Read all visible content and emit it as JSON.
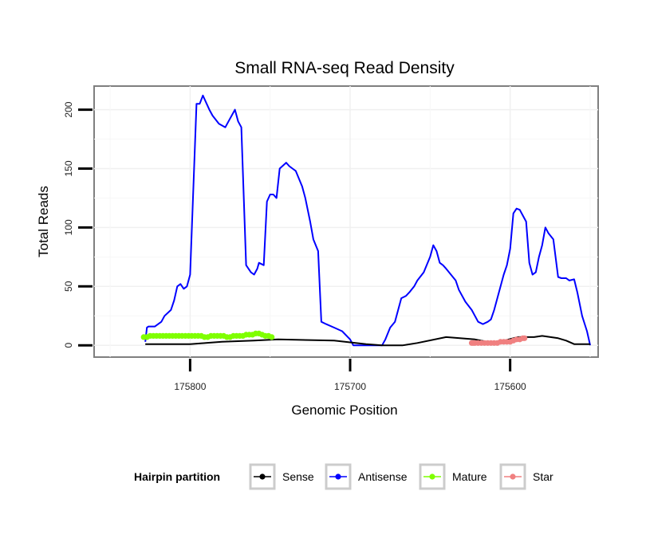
{
  "chart_data": {
    "type": "line",
    "title": "Small RNA-seq Read Density",
    "xlabel": "Genomic Position",
    "ylabel": "Total Reads",
    "x_reversed": true,
    "xlim": [
      175545,
      175860
    ],
    "ylim": [
      -10,
      220
    ],
    "x_ticks": [
      175800,
      175700,
      175600
    ],
    "x_tick_labels": [
      "175800",
      "175700",
      "175600"
    ],
    "y_ticks": [
      0,
      50,
      100,
      150,
      200
    ],
    "y_tick_labels": [
      "0",
      "50",
      "100",
      "150",
      "200"
    ],
    "legend": {
      "title": "Hairpin partition",
      "position": "bottom",
      "entries": [
        "Sense",
        "Antisense",
        "Mature",
        "Star"
      ]
    },
    "series": [
      {
        "name": "Sense",
        "color": "#000000",
        "style": "line",
        "x": [
          175828,
          175800,
          175790,
          175780,
          175760,
          175745,
          175710,
          175690,
          175680,
          175667,
          175658,
          175640,
          175622,
          175610,
          175595,
          175585,
          175580,
          175570,
          175565,
          175560,
          175550
        ],
        "y": [
          1,
          1,
          2,
          3,
          4,
          5,
          4,
          1,
          0,
          0,
          2,
          7,
          5,
          2,
          7,
          7,
          8,
          6,
          4,
          1,
          1
        ]
      },
      {
        "name": "Antisense",
        "color": "#0000ff",
        "style": "line",
        "x": [
          175828,
          175827,
          175826,
          175822,
          175818,
          175816,
          175812,
          175810,
          175808,
          175806,
          175804,
          175802,
          175800,
          175796,
          175794,
          175792,
          175788,
          175786,
          175782,
          175778,
          175776,
          175772,
          175770,
          175768,
          175765,
          175762,
          175760,
          175758,
          175757,
          175754,
          175752,
          175750,
          175748,
          175746,
          175744,
          175740,
          175738,
          175736,
          175734,
          175730,
          175728,
          175725,
          175723,
          175720,
          175718,
          175715,
          175710,
          175705,
          175700,
          175698,
          175695,
          175690,
          175685,
          175680,
          175678,
          175675,
          175672,
          175668,
          175665,
          175663,
          175660,
          175658,
          175654,
          175650,
          175648,
          175646,
          175644,
          175642,
          175640,
          175637,
          175634,
          175632,
          175628,
          175624,
          175620,
          175617,
          175614,
          175612,
          175610,
          175608,
          175604,
          175602,
          175600,
          175598,
          175596,
          175594,
          175592,
          175590,
          175588,
          175586,
          175584,
          175582,
          175580,
          175578,
          175576,
          175573,
          175570,
          175568,
          175565,
          175563,
          175560,
          175558,
          175555,
          175552,
          175550
        ],
        "y": [
          3,
          15,
          16,
          16,
          20,
          25,
          30,
          38,
          50,
          52,
          48,
          50,
          60,
          205,
          205,
          212,
          200,
          195,
          188,
          185,
          190,
          200,
          190,
          185,
          68,
          62,
          60,
          65,
          70,
          68,
          122,
          128,
          128,
          125,
          150,
          155,
          152,
          150,
          148,
          135,
          125,
          105,
          90,
          80,
          20,
          18,
          15,
          12,
          5,
          0,
          0,
          0,
          0,
          0,
          5,
          15,
          20,
          40,
          42,
          45,
          50,
          55,
          62,
          75,
          85,
          80,
          70,
          68,
          65,
          60,
          55,
          47,
          37,
          30,
          20,
          18,
          20,
          22,
          30,
          40,
          60,
          68,
          82,
          112,
          116,
          115,
          110,
          105,
          70,
          60,
          62,
          75,
          85,
          100,
          95,
          90,
          58,
          57,
          57,
          55,
          56,
          45,
          25,
          12,
          0
        ]
      },
      {
        "name": "Mature",
        "color": "#7fff00",
        "style": "markers",
        "x": [
          175829,
          175827,
          175825,
          175823,
          175821,
          175819,
          175817,
          175815,
          175813,
          175811,
          175809,
          175807,
          175805,
          175803,
          175801,
          175799,
          175797,
          175795,
          175793,
          175791,
          175789,
          175787,
          175785,
          175783,
          175781,
          175779,
          175777,
          175775,
          175773,
          175771,
          175769,
          175767,
          175765,
          175763,
          175761,
          175759,
          175757,
          175755,
          175753,
          175751,
          175749
        ],
        "y": [
          7,
          7,
          8,
          8,
          8,
          8,
          8,
          8,
          8,
          8,
          8,
          8,
          8,
          8,
          8,
          8,
          8,
          8,
          8,
          7,
          7,
          8,
          8,
          8,
          8,
          8,
          7,
          7,
          8,
          8,
          8,
          8,
          9,
          9,
          9,
          10,
          10,
          9,
          8,
          8,
          7
        ]
      },
      {
        "name": "Star",
        "color": "#f08080",
        "style": "markers",
        "x": [
          175624,
          175623,
          175622,
          175620,
          175618,
          175616,
          175614,
          175612,
          175610,
          175608,
          175606,
          175604,
          175602,
          175600,
          175598,
          175596,
          175594,
          175592,
          175591
        ],
        "y": [
          2,
          2,
          2,
          2,
          2,
          2,
          2,
          2,
          2,
          2,
          3,
          3,
          3,
          3,
          4,
          5,
          5,
          6,
          6
        ]
      }
    ]
  }
}
